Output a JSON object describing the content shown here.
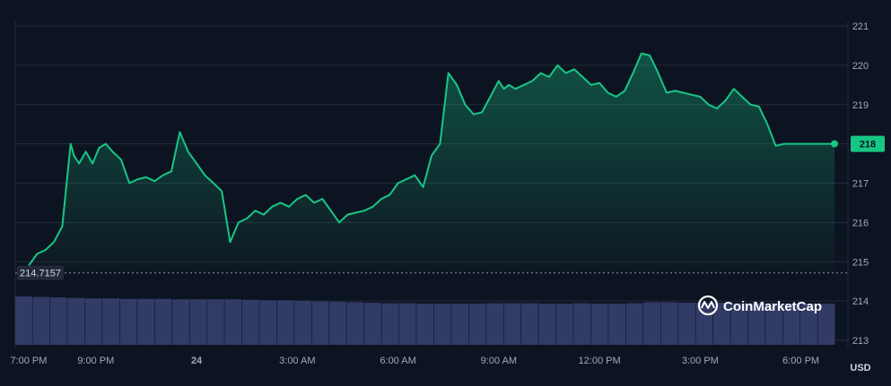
{
  "chart_data": {
    "type": "line",
    "x_ticks": [
      "7:00 PM",
      "9:00 PM",
      "24",
      "3:00 AM",
      "6:00 AM",
      "9:00 AM",
      "12:00 PM",
      "3:00 PM",
      "6:00 PM"
    ],
    "y_ticks": [
      213,
      214,
      215,
      216,
      217,
      218,
      219,
      220,
      221
    ],
    "ylim": [
      213,
      221
    ],
    "x_range_hours": [
      -0.4,
      24.4
    ],
    "unit": "USD",
    "current_price": "218",
    "open_price": "214.7157",
    "open_value": 214.7157,
    "series": [
      {
        "x": [
          0,
          0.25,
          0.5,
          0.75,
          1,
          1.25,
          1.35,
          1.5,
          1.7,
          1.9,
          2.1,
          2.3,
          2.5,
          2.75,
          3,
          3.25,
          3.5,
          3.75,
          4,
          4.25,
          4.5,
          4.75,
          5,
          5.25,
          5.5,
          5.75,
          6,
          6.25,
          6.5,
          6.75,
          7,
          7.25,
          7.5,
          7.75,
          8,
          8.25,
          8.5,
          8.75,
          9,
          9.25,
          9.5,
          9.75,
          10,
          10.25,
          10.5,
          10.75,
          11,
          11.25,
          11.5,
          11.75,
          12,
          12.25,
          12.5,
          12.75,
          13,
          13.25,
          13.5,
          13.75,
          14,
          14.15,
          14.3,
          14.5,
          14.75,
          15,
          15.25,
          15.5,
          15.75,
          16,
          16.25,
          16.5,
          16.75,
          17,
          17.25,
          17.5,
          17.75,
          18,
          18.25,
          18.5,
          18.75,
          19,
          19.25,
          19.5,
          19.75,
          20,
          20.25,
          20.5,
          20.75,
          21,
          21.25,
          21.5,
          21.75,
          22,
          22.25,
          22.5,
          22.75,
          23,
          23.25,
          23.5,
          23.75,
          24
        ],
        "values": [
          214.9,
          215.2,
          215.3,
          215.5,
          215.9,
          218.0,
          217.7,
          217.5,
          217.8,
          217.5,
          217.9,
          218.0,
          217.8,
          217.6,
          217.0,
          217.1,
          217.15,
          217.05,
          217.2,
          217.3,
          218.3,
          217.8,
          217.5,
          217.2,
          217.0,
          216.8,
          215.5,
          216.0,
          216.1,
          216.3,
          216.2,
          216.4,
          216.5,
          216.4,
          216.6,
          216.7,
          216.5,
          216.6,
          216.3,
          216.0,
          216.2,
          216.25,
          216.3,
          216.4,
          216.6,
          216.7,
          217.0,
          217.1,
          217.2,
          216.9,
          217.7,
          218.0,
          219.8,
          219.5,
          219.0,
          218.75,
          218.8,
          219.2,
          219.6,
          219.4,
          219.5,
          219.4,
          219.5,
          219.6,
          219.8,
          219.7,
          220.0,
          219.8,
          219.9,
          219.7,
          219.5,
          219.55,
          219.3,
          219.2,
          219.35,
          219.8,
          220.3,
          220.25,
          219.8,
          219.3,
          219.35,
          219.3,
          219.25,
          219.2,
          219.0,
          218.9,
          219.1,
          219.4,
          219.2,
          219.0,
          218.95,
          218.5,
          217.95,
          218.0,
          218.0,
          218.0,
          218.0,
          218.0,
          218.0,
          218.0
        ]
      }
    ],
    "volume": {
      "values": [
        100,
        99,
        98,
        97,
        96,
        96,
        95,
        95,
        95,
        94,
        94,
        94,
        94,
        93,
        92,
        92,
        91,
        90,
        89,
        88,
        87,
        86,
        86,
        85,
        85,
        85,
        85,
        86,
        86,
        86,
        85,
        85,
        86,
        85,
        85,
        86,
        88,
        88,
        87,
        87,
        87,
        86,
        86,
        86,
        85,
        85,
        85
      ],
      "ymax": 100
    },
    "grid": true,
    "line_color": "#16c784",
    "brand": "CoinMarketCap"
  }
}
